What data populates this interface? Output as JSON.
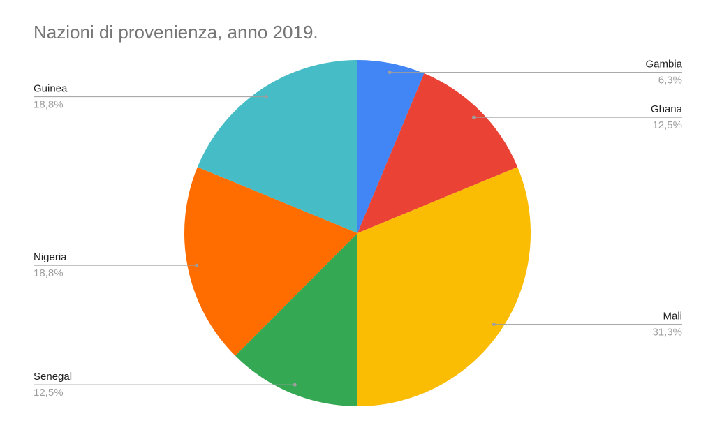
{
  "chart_data": {
    "type": "pie",
    "title": "Nazioni di provenienza, anno 2019.",
    "categories": [
      "Gambia",
      "Ghana",
      "Mali",
      "Senegal",
      "Nigeria",
      "Guinea"
    ],
    "values": [
      6.3,
      12.5,
      31.3,
      12.5,
      18.8,
      18.8
    ],
    "value_labels": [
      "6,3%",
      "12,5%",
      "31,3%",
      "12,5%",
      "18,8%",
      "18,8%"
    ],
    "colors": [
      "#4285f4",
      "#ea4335",
      "#fbbc04",
      "#34a853",
      "#ff6d01",
      "#46bdc6"
    ]
  }
}
